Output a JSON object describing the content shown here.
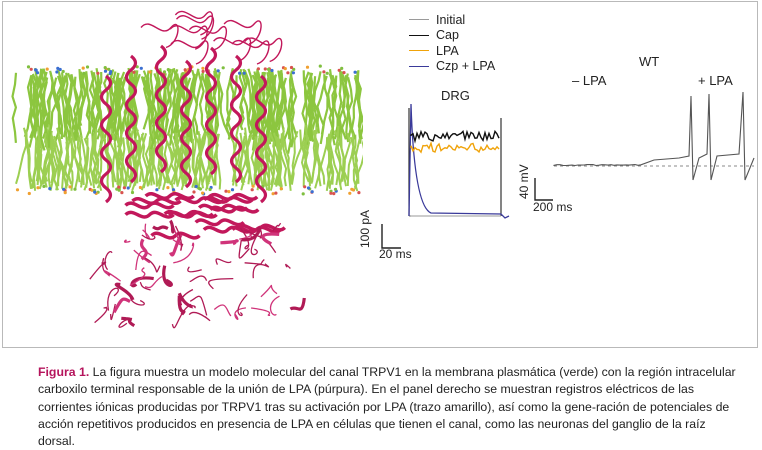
{
  "legend": {
    "items": [
      {
        "label": "Initial",
        "color": "#9a9a9a"
      },
      {
        "label": "Cap",
        "color": "#111111"
      },
      {
        "label": "LPA",
        "color": "#f0a30a"
      },
      {
        "label": "Czp + LPA",
        "color": "#3a3a9a"
      }
    ]
  },
  "drg_panel": {
    "title": "DRG",
    "scale_y": "100 pA",
    "scale_x": "20 ms"
  },
  "wt_panel": {
    "title": "WT",
    "minus_label": "– LPA",
    "plus_label": "+ LPA",
    "scale_y": "40 mV",
    "scale_x": "200 ms"
  },
  "caption": {
    "label": "Figura 1.",
    "text": "La figura muestra un modelo molecular del canal TRPV1 en la membrana plasmática (verde) con la región intracelular carboxilo terminal responsable de la unión de LPA (púrpura). En el panel derecho se muestran registros eléctricos de las corrientes iónicas producidas por TRPV1 tras su activación por LPA (trazo amarillo), así como la gene-ración de potenciales de acción repetitivos producidos en presencia de LPA en células que tienen el canal, como las neuronas del ganglio de la raíz dorsal."
  },
  "colors": {
    "membrane": "#8cc63f",
    "protein": "#c2185b",
    "caption_label": "#b5145c"
  }
}
